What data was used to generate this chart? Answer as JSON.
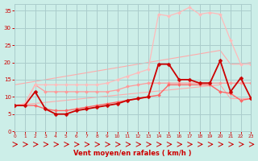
{
  "background_color": "#cceee8",
  "grid_color": "#aacccc",
  "xlabel": "Vent moyen/en rafales ( km/h )",
  "xlabel_color": "#cc0000",
  "tick_color": "#cc0000",
  "ylim": [
    0,
    37
  ],
  "xlim": [
    0,
    23
  ],
  "yticks": [
    0,
    5,
    10,
    15,
    20,
    25,
    30,
    35
  ],
  "xticks": [
    0,
    1,
    2,
    3,
    4,
    5,
    6,
    7,
    8,
    9,
    10,
    11,
    12,
    13,
    14,
    15,
    16,
    17,
    18,
    19,
    20,
    21,
    22,
    23
  ],
  "series": [
    {
      "x": [
        0,
        1,
        2,
        3,
        4,
        5,
        6,
        7,
        8,
        9,
        10,
        11,
        12,
        13,
        14,
        15,
        16,
        17,
        18,
        19,
        20,
        21,
        22,
        23
      ],
      "y": [
        7.5,
        7.8,
        8.1,
        8.4,
        8.7,
        9.0,
        9.3,
        9.6,
        9.9,
        10.2,
        10.5,
        10.8,
        11.1,
        11.4,
        11.7,
        12.0,
        12.3,
        12.6,
        12.9,
        13.2,
        13.5,
        9.5,
        9.5,
        9.5
      ],
      "color": "#ffaaaa",
      "lw": 0.8,
      "marker": null,
      "zorder": 1
    },
    {
      "x": [
        0,
        1,
        2,
        3,
        4,
        5,
        6,
        7,
        8,
        9,
        10,
        11,
        12,
        13,
        14,
        15,
        16,
        17,
        18,
        19,
        20,
        21,
        22,
        23
      ],
      "y": [
        13.5,
        14.0,
        14.5,
        15.0,
        15.5,
        16.0,
        16.5,
        17.0,
        17.5,
        18.0,
        18.5,
        19.0,
        19.5,
        20.0,
        20.5,
        21.0,
        21.5,
        22.0,
        22.5,
        23.0,
        23.5,
        19.5,
        19.5,
        20.0
      ],
      "color": "#ffaaaa",
      "lw": 0.8,
      "marker": null,
      "zorder": 1
    },
    {
      "x": [
        0,
        1,
        2,
        3,
        4,
        5,
        6,
        7,
        8,
        9,
        10,
        11,
        12,
        13,
        14,
        15,
        16,
        17,
        18,
        19,
        20,
        21,
        22,
        23
      ],
      "y": [
        7.5,
        8.0,
        13.5,
        11.5,
        11.5,
        11.5,
        11.5,
        11.5,
        11.5,
        11.5,
        12.0,
        13.0,
        13.5,
        14.0,
        14.0,
        14.0,
        14.0,
        14.0,
        14.0,
        14.0,
        14.0,
        14.0,
        14.0,
        14.0
      ],
      "color": "#ff9999",
      "lw": 0.9,
      "marker": "D",
      "ms": 2.0,
      "zorder": 2
    },
    {
      "x": [
        0,
        1,
        2,
        3,
        4,
        5,
        6,
        7,
        8,
        9,
        10,
        11,
        12,
        13,
        14,
        15,
        16,
        17,
        18,
        19,
        20,
        21,
        22,
        23
      ],
      "y": [
        7.5,
        8.0,
        13.5,
        13.5,
        13.5,
        13.5,
        13.5,
        13.5,
        13.5,
        14.0,
        15.0,
        16.0,
        17.0,
        18.0,
        34.0,
        33.5,
        34.5,
        36.0,
        34.0,
        34.5,
        34.0,
        26.5,
        19.5,
        19.5
      ],
      "color": "#ffbbbb",
      "lw": 0.9,
      "marker": "D",
      "ms": 2.0,
      "zorder": 2
    },
    {
      "x": [
        0,
        1,
        2,
        3,
        4,
        5,
        6,
        7,
        8,
        9,
        10,
        11,
        12,
        13,
        14,
        15,
        16,
        17,
        18,
        19,
        20,
        21,
        22,
        23
      ],
      "y": [
        7.5,
        7.5,
        7.5,
        6.5,
        6.0,
        6.0,
        6.5,
        7.0,
        7.5,
        8.0,
        8.5,
        9.0,
        9.5,
        10.0,
        10.5,
        13.5,
        13.5,
        13.5,
        13.5,
        13.5,
        11.5,
        11.0,
        9.0,
        9.5
      ],
      "color": "#ff6666",
      "lw": 1.0,
      "marker": "D",
      "ms": 2.0,
      "zorder": 3
    },
    {
      "x": [
        0,
        1,
        2,
        3,
        4,
        5,
        6,
        7,
        8,
        9,
        10,
        11,
        12,
        13,
        14,
        15,
        16,
        17,
        18,
        19,
        20,
        21,
        22,
        23
      ],
      "y": [
        7.5,
        7.5,
        11.5,
        6.5,
        5.0,
        5.0,
        6.0,
        6.5,
        7.0,
        7.5,
        8.0,
        9.0,
        9.5,
        10.0,
        19.5,
        19.5,
        15.0,
        15.0,
        14.0,
        14.0,
        20.5,
        11.5,
        15.5,
        9.5
      ],
      "color": "#cc0000",
      "lw": 1.3,
      "marker": "D",
      "ms": 2.5,
      "zorder": 4
    }
  ],
  "wind_arrows": {
    "color": "#cc0000",
    "x_positions": [
      0,
      1,
      2,
      3,
      4,
      5,
      6,
      7,
      8,
      9,
      10,
      11,
      12,
      13,
      14,
      15,
      16,
      17,
      18,
      19,
      20,
      21,
      22,
      23
    ]
  }
}
